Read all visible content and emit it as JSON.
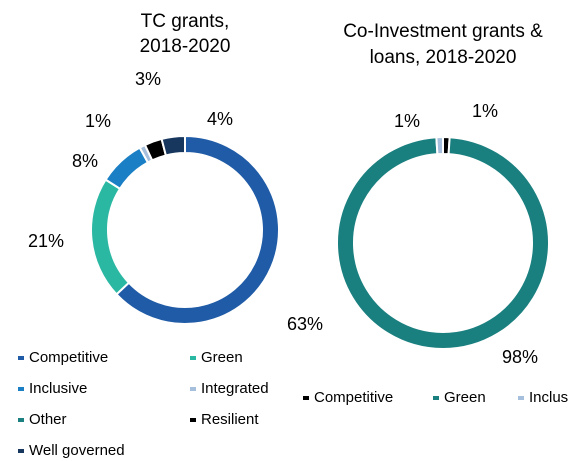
{
  "chart_data": [
    {
      "type": "donut",
      "title": [
        "TC grants,",
        "2018-2020"
      ],
      "categories": [
        "Competitive",
        "Green",
        "Inclusive",
        "Integrated",
        "Other",
        "Resilient",
        "Well governed"
      ],
      "values": [
        63,
        21,
        8,
        1,
        0,
        3,
        4
      ],
      "value_labels": [
        "63%",
        "21%",
        "8%",
        "1%",
        null,
        "3%",
        "4%"
      ],
      "colors": [
        "#1f5ba6",
        "#2bb8a3",
        "#1a7fc4",
        "#a6bfdc",
        "#1a8080",
        "#000000",
        "#17375e"
      ]
    },
    {
      "type": "donut",
      "title": [
        "Co-Investment  grants &",
        "loans, 2018-2020"
      ],
      "categories": [
        "Competitive",
        "Green",
        "Inclus"
      ],
      "values": [
        1,
        98,
        1
      ],
      "value_labels": [
        "1%",
        "98%",
        "1%"
      ],
      "colors": [
        "#000000",
        "#1a7f7f",
        "#a6bfdc"
      ]
    }
  ]
}
